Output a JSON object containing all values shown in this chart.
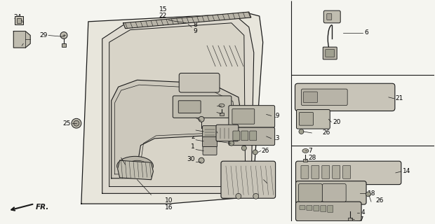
{
  "bg_color": "#f5f5f0",
  "line_color": "#1a1a1a",
  "text_color": "#000000",
  "fig_width": 6.2,
  "fig_height": 3.2,
  "dpi": 100
}
